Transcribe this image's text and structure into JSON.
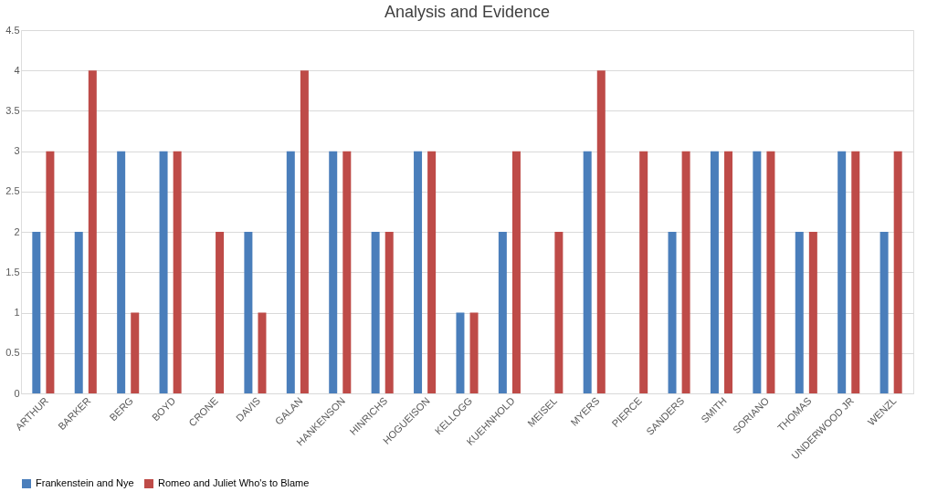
{
  "chart_data": {
    "type": "bar",
    "title": "Analysis and Evidence",
    "categories": [
      "ARTHUR",
      "BARKER",
      "BERG",
      "BOYD",
      "CRONE",
      "DAVIS",
      "GALAN",
      "HANKENSON",
      "HINRICHS",
      "HOGUEISON",
      "KELLOGG",
      "KUEHNHOLD",
      "MEISEL",
      "MYERS",
      "PIERCE",
      "SANDERS",
      "SMITH",
      "SORIANO",
      "THOMAS",
      "UNDERWOOD JR",
      "WENZL"
    ],
    "series": [
      {
        "name": "Frankenstein and Nye",
        "color": "#4a7ebb",
        "values": [
          2,
          2,
          3,
          3,
          0,
          2,
          3,
          3,
          2,
          3,
          1,
          2,
          0,
          3,
          0,
          2,
          3,
          3,
          2,
          3,
          2
        ]
      },
      {
        "name": "Romeo and Juliet Who's to Blame",
        "color": "#be4b48",
        "values": [
          3,
          4,
          1,
          3,
          2,
          1,
          4,
          3,
          2,
          3,
          1,
          3,
          2,
          4,
          3,
          3,
          3,
          3,
          2,
          3,
          3
        ]
      }
    ],
    "ylim": [
      0,
      4.5
    ],
    "yticks": [
      0,
      0.5,
      1,
      1.5,
      2,
      2.5,
      3,
      3.5,
      4,
      4.5
    ],
    "grid": "y",
    "legend": "bottom"
  }
}
